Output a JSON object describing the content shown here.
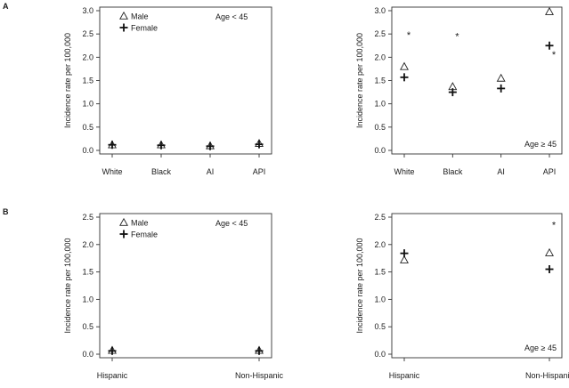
{
  "panels": {
    "a": "A",
    "b": "B"
  },
  "chart_data": [
    {
      "type": "scatter",
      "title": "",
      "xlabel": "",
      "ylabel": "Incidence rate per 100,000",
      "ylim": [
        0.0,
        3.0
      ],
      "yticks": [
        "0.0",
        "0.5",
        "1.0",
        "1.5",
        "2.0",
        "2.5",
        "3.0"
      ],
      "categories": [
        "White",
        "Black",
        "AI",
        "API"
      ],
      "annotation": "Age < 45",
      "legend": {
        "placement": "top-left",
        "entries": [
          {
            "label": "Male",
            "marker": "triangle"
          },
          {
            "label": "Female",
            "marker": "plus"
          }
        ]
      },
      "series": [
        {
          "name": "Male",
          "marker": "triangle",
          "values": [
            0.12,
            0.12,
            0.1,
            0.15
          ]
        },
        {
          "name": "Female",
          "marker": "plus",
          "values": [
            0.12,
            0.11,
            0.09,
            0.13
          ]
        }
      ],
      "asterisks": []
    },
    {
      "type": "scatter",
      "title": "",
      "xlabel": "",
      "ylabel": "Incidence rate per 100,000",
      "ylim": [
        0.0,
        3.0
      ],
      "yticks": [
        "0.0",
        "0.5",
        "1.0",
        "1.5",
        "2.0",
        "2.5",
        "3.0"
      ],
      "categories": [
        "White",
        "Black",
        "AI",
        "API"
      ],
      "annotation": "Age ≥ 45",
      "legend": null,
      "series": [
        {
          "name": "Male",
          "marker": "triangle",
          "values": [
            1.8,
            1.37,
            1.55,
            2.98
          ]
        },
        {
          "name": "Female",
          "marker": "plus",
          "values": [
            1.57,
            1.25,
            1.33,
            2.25
          ]
        }
      ],
      "asterisks": [
        {
          "category": "White",
          "value": 2.5
        },
        {
          "category": "Black",
          "value": 2.47
        },
        {
          "category": "API",
          "value": 2.08
        }
      ]
    },
    {
      "type": "scatter",
      "title": "",
      "xlabel": "",
      "ylabel": "Incidence rate per 100,000",
      "ylim": [
        0.0,
        2.5
      ],
      "yticks": [
        "0.0",
        "0.5",
        "1.0",
        "1.5",
        "2.0",
        "2.5"
      ],
      "categories": [
        "Hispanic",
        "Non-Hispanic"
      ],
      "annotation": "Age < 45",
      "legend": {
        "placement": "top-left",
        "entries": [
          {
            "label": "Male",
            "marker": "triangle"
          },
          {
            "label": "Female",
            "marker": "plus"
          }
        ]
      },
      "series": [
        {
          "name": "Male",
          "marker": "triangle",
          "values": [
            0.07,
            0.07
          ]
        },
        {
          "name": "Female",
          "marker": "plus",
          "values": [
            0.06,
            0.06
          ]
        }
      ],
      "asterisks": []
    },
    {
      "type": "scatter",
      "title": "",
      "xlabel": "",
      "ylabel": "Incidence rate per 100,000",
      "ylim": [
        0.0,
        2.5
      ],
      "yticks": [
        "0.0",
        "0.5",
        "1.0",
        "1.5",
        "2.0",
        "2.5"
      ],
      "categories": [
        "Hispanic",
        "Non-Hispanic"
      ],
      "annotation": "Age ≥ 45",
      "legend": null,
      "series": [
        {
          "name": "Male",
          "marker": "triangle",
          "values": [
            1.72,
            1.85
          ]
        },
        {
          "name": "Female",
          "marker": "plus",
          "values": [
            1.84,
            1.55
          ]
        }
      ],
      "asterisks": [
        {
          "category": "Non-Hispanic",
          "value": 2.38
        }
      ]
    }
  ]
}
